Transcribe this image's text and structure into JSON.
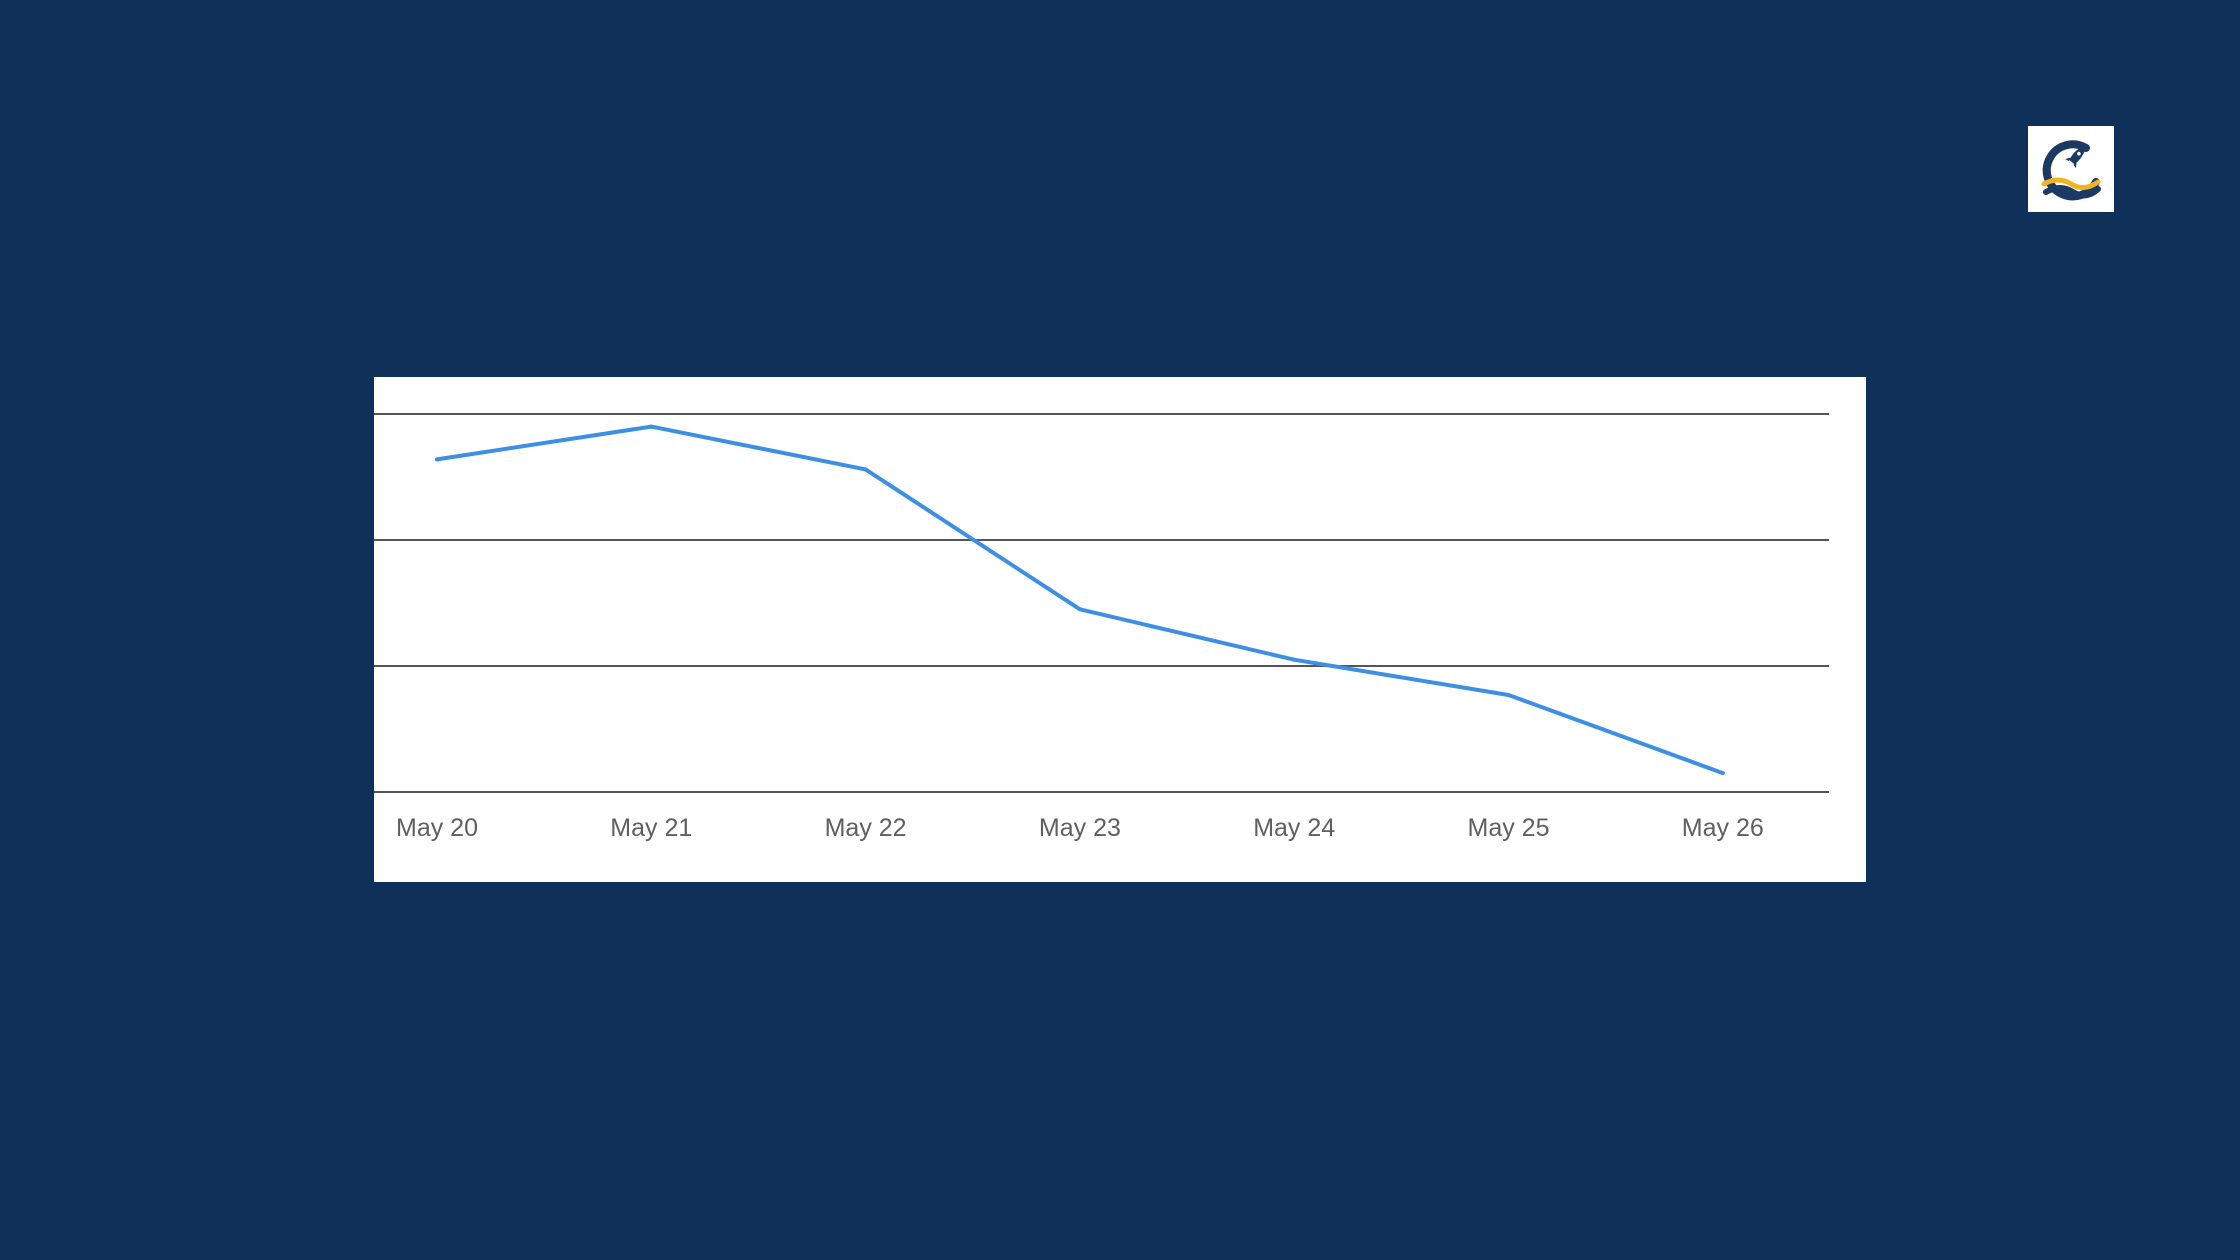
{
  "colors": {
    "background": "#0f3058",
    "card": "#ffffff",
    "line": "#3d8fe3",
    "grid": "#555555",
    "tick_text": "#5f5f5f",
    "logo_navy": "#1b3a63",
    "logo_gold": "#f0b323"
  },
  "logo": {
    "icon": "rocket-wave-logo"
  },
  "chart_data": {
    "type": "line",
    "title": "",
    "xlabel": "",
    "ylabel": "",
    "categories": [
      "May 20",
      "May 21",
      "May 22",
      "May 23",
      "May 24",
      "May 25",
      "May 26"
    ],
    "series": [
      {
        "values": [
          2.64,
          2.9,
          2.56,
          1.45,
          1.05,
          0.77,
          0.15
        ]
      }
    ],
    "ylim": [
      0,
      3
    ],
    "y_ticks": [
      0,
      1,
      2,
      3
    ],
    "y_tick_labels_visible": false,
    "grid": true,
    "legend": "none"
  }
}
